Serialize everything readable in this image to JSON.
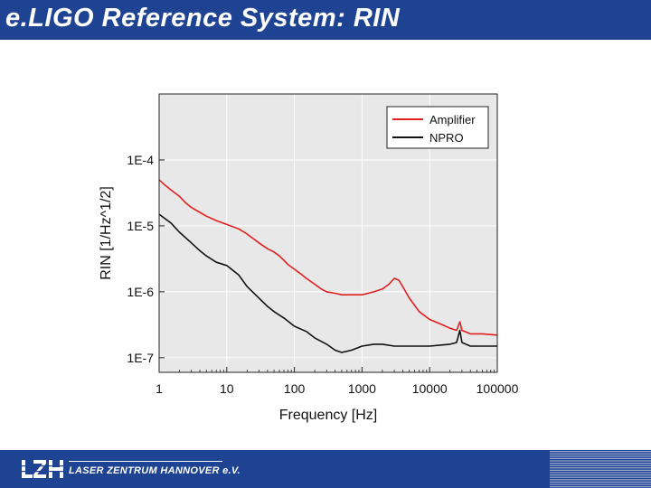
{
  "slide": {
    "title": "e.LIGO Reference System: RIN",
    "footer_org": "LASER ZENTRUM HANNOVER e.V."
  },
  "colors": {
    "header_bg": "#1f4393",
    "amplifier": "#e02020",
    "npro": "#111111",
    "plot_bg": "#e8e8e8"
  },
  "chart_data": {
    "type": "line",
    "xlabel": "Frequency [Hz]",
    "ylabel": "RIN [1/Hz^1/2]",
    "xscale": "log",
    "yscale": "log",
    "xlim": [
      1,
      100000
    ],
    "ylim": [
      6e-08,
      0.001
    ],
    "xticks": [
      1,
      10,
      100,
      1000,
      10000,
      100000
    ],
    "xticklabels": [
      "1",
      "10",
      "100",
      "1000",
      "10000",
      "100000"
    ],
    "yticks": [
      1e-07,
      1e-06,
      1e-05,
      0.0001
    ],
    "yticklabels": [
      "1E-7",
      "1E-6",
      "1E-5",
      "1E-4"
    ],
    "grid": true,
    "legend": "top-right",
    "series": [
      {
        "name": "Amplifier",
        "color": "#e02020",
        "x": [
          1,
          1.2,
          1.5,
          2,
          2.5,
          3,
          4,
          5,
          7,
          10,
          15,
          20,
          30,
          40,
          50,
          60,
          70,
          80,
          100,
          130,
          150,
          200,
          250,
          300,
          400,
          500,
          700,
          1000,
          1500,
          2000,
          2500,
          3000,
          3500,
          4000,
          5000,
          7000,
          10000,
          15000,
          20000,
          25000,
          28000,
          30000,
          40000,
          60000,
          100000
        ],
        "y": [
          5e-05,
          4.2e-05,
          3.5e-05,
          2.8e-05,
          2.2e-05,
          1.9e-05,
          1.6e-05,
          1.4e-05,
          1.2e-05,
          1.05e-05,
          9e-06,
          7.5e-06,
          5.5e-06,
          4.5e-06,
          4e-06,
          3.5e-06,
          3e-06,
          2.6e-06,
          2.2e-06,
          1.8e-06,
          1.6e-06,
          1.3e-06,
          1.1e-06,
          1e-06,
          9.5e-07,
          9e-07,
          9e-07,
          9e-07,
          1e-06,
          1.1e-06,
          1.3e-06,
          1.6e-06,
          1.5e-06,
          1.2e-06,
          8e-07,
          5e-07,
          3.8e-07,
          3.2e-07,
          2.8e-07,
          2.6e-07,
          3.5e-07,
          2.6e-07,
          2.3e-07,
          2.3e-07,
          2.2e-07
        ]
      },
      {
        "name": "NPRO",
        "color": "#111111",
        "x": [
          1,
          1.5,
          2,
          3,
          4,
          5,
          7,
          10,
          15,
          20,
          30,
          40,
          50,
          70,
          100,
          150,
          200,
          300,
          400,
          500,
          700,
          1000,
          1500,
          2000,
          3000,
          5000,
          10000,
          20000,
          25000,
          28000,
          30000,
          40000,
          70000,
          100000
        ],
        "y": [
          1.5e-05,
          1.1e-05,
          8e-06,
          5.5e-06,
          4.2e-06,
          3.5e-06,
          2.8e-06,
          2.5e-06,
          1.8e-06,
          1.2e-06,
          8e-07,
          6e-07,
          5e-07,
          4e-07,
          3e-07,
          2.5e-07,
          2e-07,
          1.6e-07,
          1.3e-07,
          1.2e-07,
          1.3e-07,
          1.5e-07,
          1.6e-07,
          1.6e-07,
          1.5e-07,
          1.5e-07,
          1.5e-07,
          1.6e-07,
          1.7e-07,
          2.6e-07,
          1.7e-07,
          1.5e-07,
          1.5e-07,
          1.5e-07
        ]
      }
    ]
  }
}
